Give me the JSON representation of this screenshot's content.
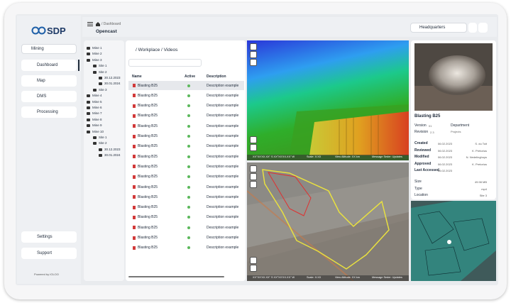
{
  "sidebar": {
    "logo": "SDP",
    "workspace": "Mining",
    "nav": [
      "Dashboard",
      "Map",
      "DMS",
      "Processing"
    ],
    "settings": "Settings",
    "support": "Support",
    "powered": "Powered by IGLOO"
  },
  "topbar": {
    "breadcrumb": "/ Dashboard",
    "page_title": "Opencast",
    "location": "Headquarters"
  },
  "tree": [
    {
      "name": "Mine 1"
    },
    {
      "name": "Mine 2"
    },
    {
      "name": "Mine 3",
      "sites": [
        {
          "name": "Site 1"
        },
        {
          "name": "Site 2",
          "dates": [
            "30.12.2023",
            "30.01.2024"
          ]
        },
        {
          "name": "Site 3"
        }
      ]
    },
    {
      "name": "Mine 4"
    },
    {
      "name": "Mine 5"
    },
    {
      "name": "Mine 6"
    },
    {
      "name": "Mine 7"
    },
    {
      "name": "Mine 8"
    },
    {
      "name": "Mine 9"
    },
    {
      "name": "Mine 10",
      "sites": [
        {
          "name": "Site 1"
        },
        {
          "name": "Site 2",
          "dates": [
            "30.12.2023",
            "30.01.2024"
          ]
        }
      ]
    }
  ],
  "files": {
    "path": "/ Workplace / Videos",
    "columns": [
      "Name",
      "Active",
      "Description"
    ],
    "rows": [
      {
        "name": "Blasting B25",
        "description": "Description example"
      },
      {
        "name": "Blasting B25",
        "description": "Description example"
      },
      {
        "name": "Blasting B25",
        "description": "Description example"
      },
      {
        "name": "Blasting B25",
        "description": "Description example"
      },
      {
        "name": "Blasting B25",
        "description": "Description example"
      },
      {
        "name": "Blasting B25",
        "description": "Description example"
      },
      {
        "name": "Blasting B25",
        "description": "Description example"
      },
      {
        "name": "Blasting B25",
        "description": "Description example"
      },
      {
        "name": "Blasting B25",
        "description": "Description example"
      },
      {
        "name": "Blasting B25",
        "description": "Description example"
      },
      {
        "name": "Blasting B25",
        "description": "Description example"
      },
      {
        "name": "Blasting B25",
        "description": "Description example"
      },
      {
        "name": "Blasting B25",
        "description": "Description example"
      },
      {
        "name": "Blasting B25",
        "description": "Description example"
      },
      {
        "name": "Blasting B25",
        "description": "Description example"
      },
      {
        "name": "Blasting B25",
        "description": "Description example"
      },
      {
        "name": "Blasting B25",
        "description": "Description example"
      }
    ]
  },
  "maps": [
    {
      "coords": "XX°XX'XX.XX\" S  XX°XX'XX.XX\" W",
      "scale": "Scale: X:XX",
      "altitude": "View Altitude: XX km",
      "message": "Message Seder: Updates"
    },
    {
      "coords": "XX°XX'XX.XX\" S  XX°XX'XX.XX\" W",
      "scale": "Scale: X:XX",
      "altitude": "View Altitude: XX km",
      "message": "Message Seder: Updates"
    }
  ],
  "details": {
    "title": "Blasting B25",
    "version": {
      "label": "Version",
      "value": "01"
    },
    "revision": {
      "label": "Revision",
      "value": "2.3"
    },
    "department": {
      "label": "Department",
      "value": "Projects"
    },
    "history": [
      {
        "label": "Created",
        "date": "06.02.2023",
        "person": "S. du Toit"
      },
      {
        "label": "Reviewed",
        "date": "06.02.2023",
        "person": "K. Pretorius"
      },
      {
        "label": "Modified",
        "date": "06.02.2023",
        "person": "N. Nedelinghuys"
      },
      {
        "label": "Approved",
        "date": "06.02.2023",
        "person": "K. Pretorius"
      },
      {
        "label": "Last Accessed",
        "date": "06.02.2023",
        "person": null
      }
    ],
    "properties": [
      {
        "label": "Size",
        "value": "49.98 MB"
      },
      {
        "label": "Type",
        "value": "mp4"
      },
      {
        "label": "Location",
        "value": "Site 3"
      }
    ]
  }
}
